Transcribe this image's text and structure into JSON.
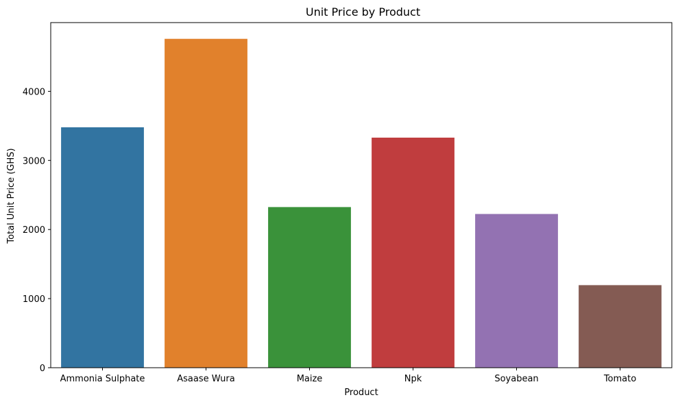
{
  "chart_data": {
    "type": "bar",
    "title": "Unit Price by Product",
    "xlabel": "Product",
    "ylabel": "Total Unit Price (GHS)",
    "categories": [
      "Ammonia Sulphate",
      "Asaase Wura",
      "Maize",
      "Npk",
      "Soyabean",
      "Tomato"
    ],
    "values": [
      3480,
      4760,
      2325,
      3330,
      2225,
      1195
    ],
    "colors": [
      "#3274a1",
      "#e1812c",
      "#3a923a",
      "#c03d3e",
      "#9372b2",
      "#845b53"
    ],
    "ylim": [
      0,
      4995
    ],
    "yticks": [
      0,
      1000,
      2000,
      3000,
      4000
    ],
    "ytick_labels": [
      "0",
      "1000",
      "2000",
      "3000",
      "4000"
    ],
    "grid": false,
    "legend": "none"
  }
}
